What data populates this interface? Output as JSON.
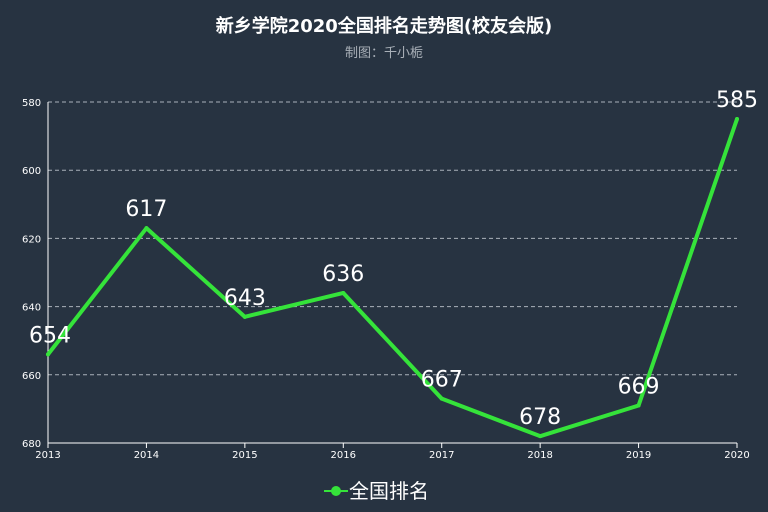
{
  "chart_data": {
    "type": "line",
    "title": "新乡学院2020全国排名走势图(校友会版)",
    "subtitle": "制图：千小栀",
    "categories": [
      "2013",
      "2014",
      "2015",
      "2016",
      "2017",
      "2018",
      "2019",
      "2020"
    ],
    "series": [
      {
        "name": "全国排名",
        "values": [
          654,
          617,
          643,
          636,
          667,
          678,
          669,
          585
        ],
        "color": "#35e33a"
      }
    ],
    "y_axis": {
      "min": 580,
      "max": 680,
      "inverted": true,
      "ticks": [
        580,
        600,
        620,
        640,
        660,
        680
      ],
      "tick_labels": [
        "580",
        "600",
        "620",
        "640",
        "660",
        "680"
      ]
    },
    "xlabel": "",
    "ylabel": "",
    "grid": true,
    "legend_position": "bottom-center"
  }
}
